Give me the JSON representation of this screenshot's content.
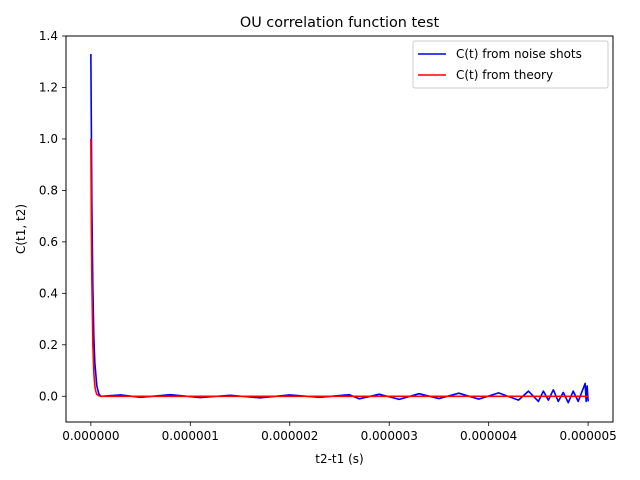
{
  "chart_data": {
    "type": "line",
    "title": "OU correlation function test",
    "xlabel": "t2-t1 (s)",
    "ylabel": "C(t1, t2)",
    "xlim": [
      -2.5e-07,
      5.25e-06
    ],
    "ylim": [
      -0.1,
      1.4
    ],
    "xticks": [
      0,
      1e-06,
      2e-06,
      3e-06,
      4e-06,
      5e-06
    ],
    "xtick_labels": [
      "0.000000",
      "0.000001",
      "0.000002",
      "0.000003",
      "0.000004",
      "0.000005"
    ],
    "yticks": [
      0.0,
      0.2,
      0.4,
      0.6,
      0.8,
      1.0,
      1.2,
      1.4
    ],
    "ytick_labels": [
      "0.0",
      "0.2",
      "0.4",
      "0.6",
      "0.8",
      "1.0",
      "1.2",
      "1.4"
    ],
    "grid": false,
    "legend_position": "top-right",
    "series": [
      {
        "name": "C(t) from noise shots",
        "color": "#0000ff",
        "x": [
          0,
          1e-08,
          2e-08,
          3e-08,
          4e-08,
          6e-08,
          8e-08,
          1e-07,
          3e-07,
          5e-07,
          8e-07,
          1.1e-06,
          1.4e-06,
          1.7e-06,
          2e-06,
          2.3e-06,
          2.6e-06,
          2.7e-06,
          2.9e-06,
          3.1e-06,
          3.3e-06,
          3.5e-06,
          3.7e-06,
          3.9e-06,
          4.1e-06,
          4.3e-06,
          4.4e-06,
          4.5e-06,
          4.55e-06,
          4.6e-06,
          4.65e-06,
          4.7e-06,
          4.75e-06,
          4.8e-06,
          4.85e-06,
          4.9e-06,
          4.95e-06,
          4.97e-06,
          4.98e-06,
          4.99e-06,
          5e-06
        ],
        "y": [
          1.33,
          0.75,
          0.42,
          0.23,
          0.13,
          0.04,
          0.01,
          0.0,
          0.005,
          -0.004,
          0.006,
          -0.005,
          0.004,
          -0.006,
          0.005,
          -0.004,
          0.006,
          -0.01,
          0.008,
          -0.012,
          0.01,
          -0.009,
          0.012,
          -0.011,
          0.013,
          -0.015,
          0.02,
          -0.02,
          0.02,
          -0.015,
          0.025,
          -0.02,
          0.015,
          -0.025,
          0.02,
          -0.02,
          0.03,
          0.05,
          -0.02,
          0.04,
          -0.02
        ]
      },
      {
        "name": "C(t) from theory",
        "color": "#ff0000",
        "x": [
          0,
          5e-09,
          1e-08,
          2e-08,
          3e-08,
          4e-08,
          5e-08,
          6e-08,
          8e-08,
          1e-07,
          5e-07,
          1e-06,
          1.5e-06,
          2e-06,
          2.5e-06,
          3e-06,
          3.5e-06,
          4e-06,
          4.5e-06,
          5e-06
        ],
        "y": [
          1.0,
          0.67,
          0.45,
          0.2,
          0.09,
          0.04,
          0.018,
          0.008,
          0.002,
          0.0,
          0.0,
          0.0,
          0.0,
          0.0,
          0.0,
          0.0,
          0.0,
          0.0,
          0.0,
          0.0
        ]
      }
    ]
  }
}
